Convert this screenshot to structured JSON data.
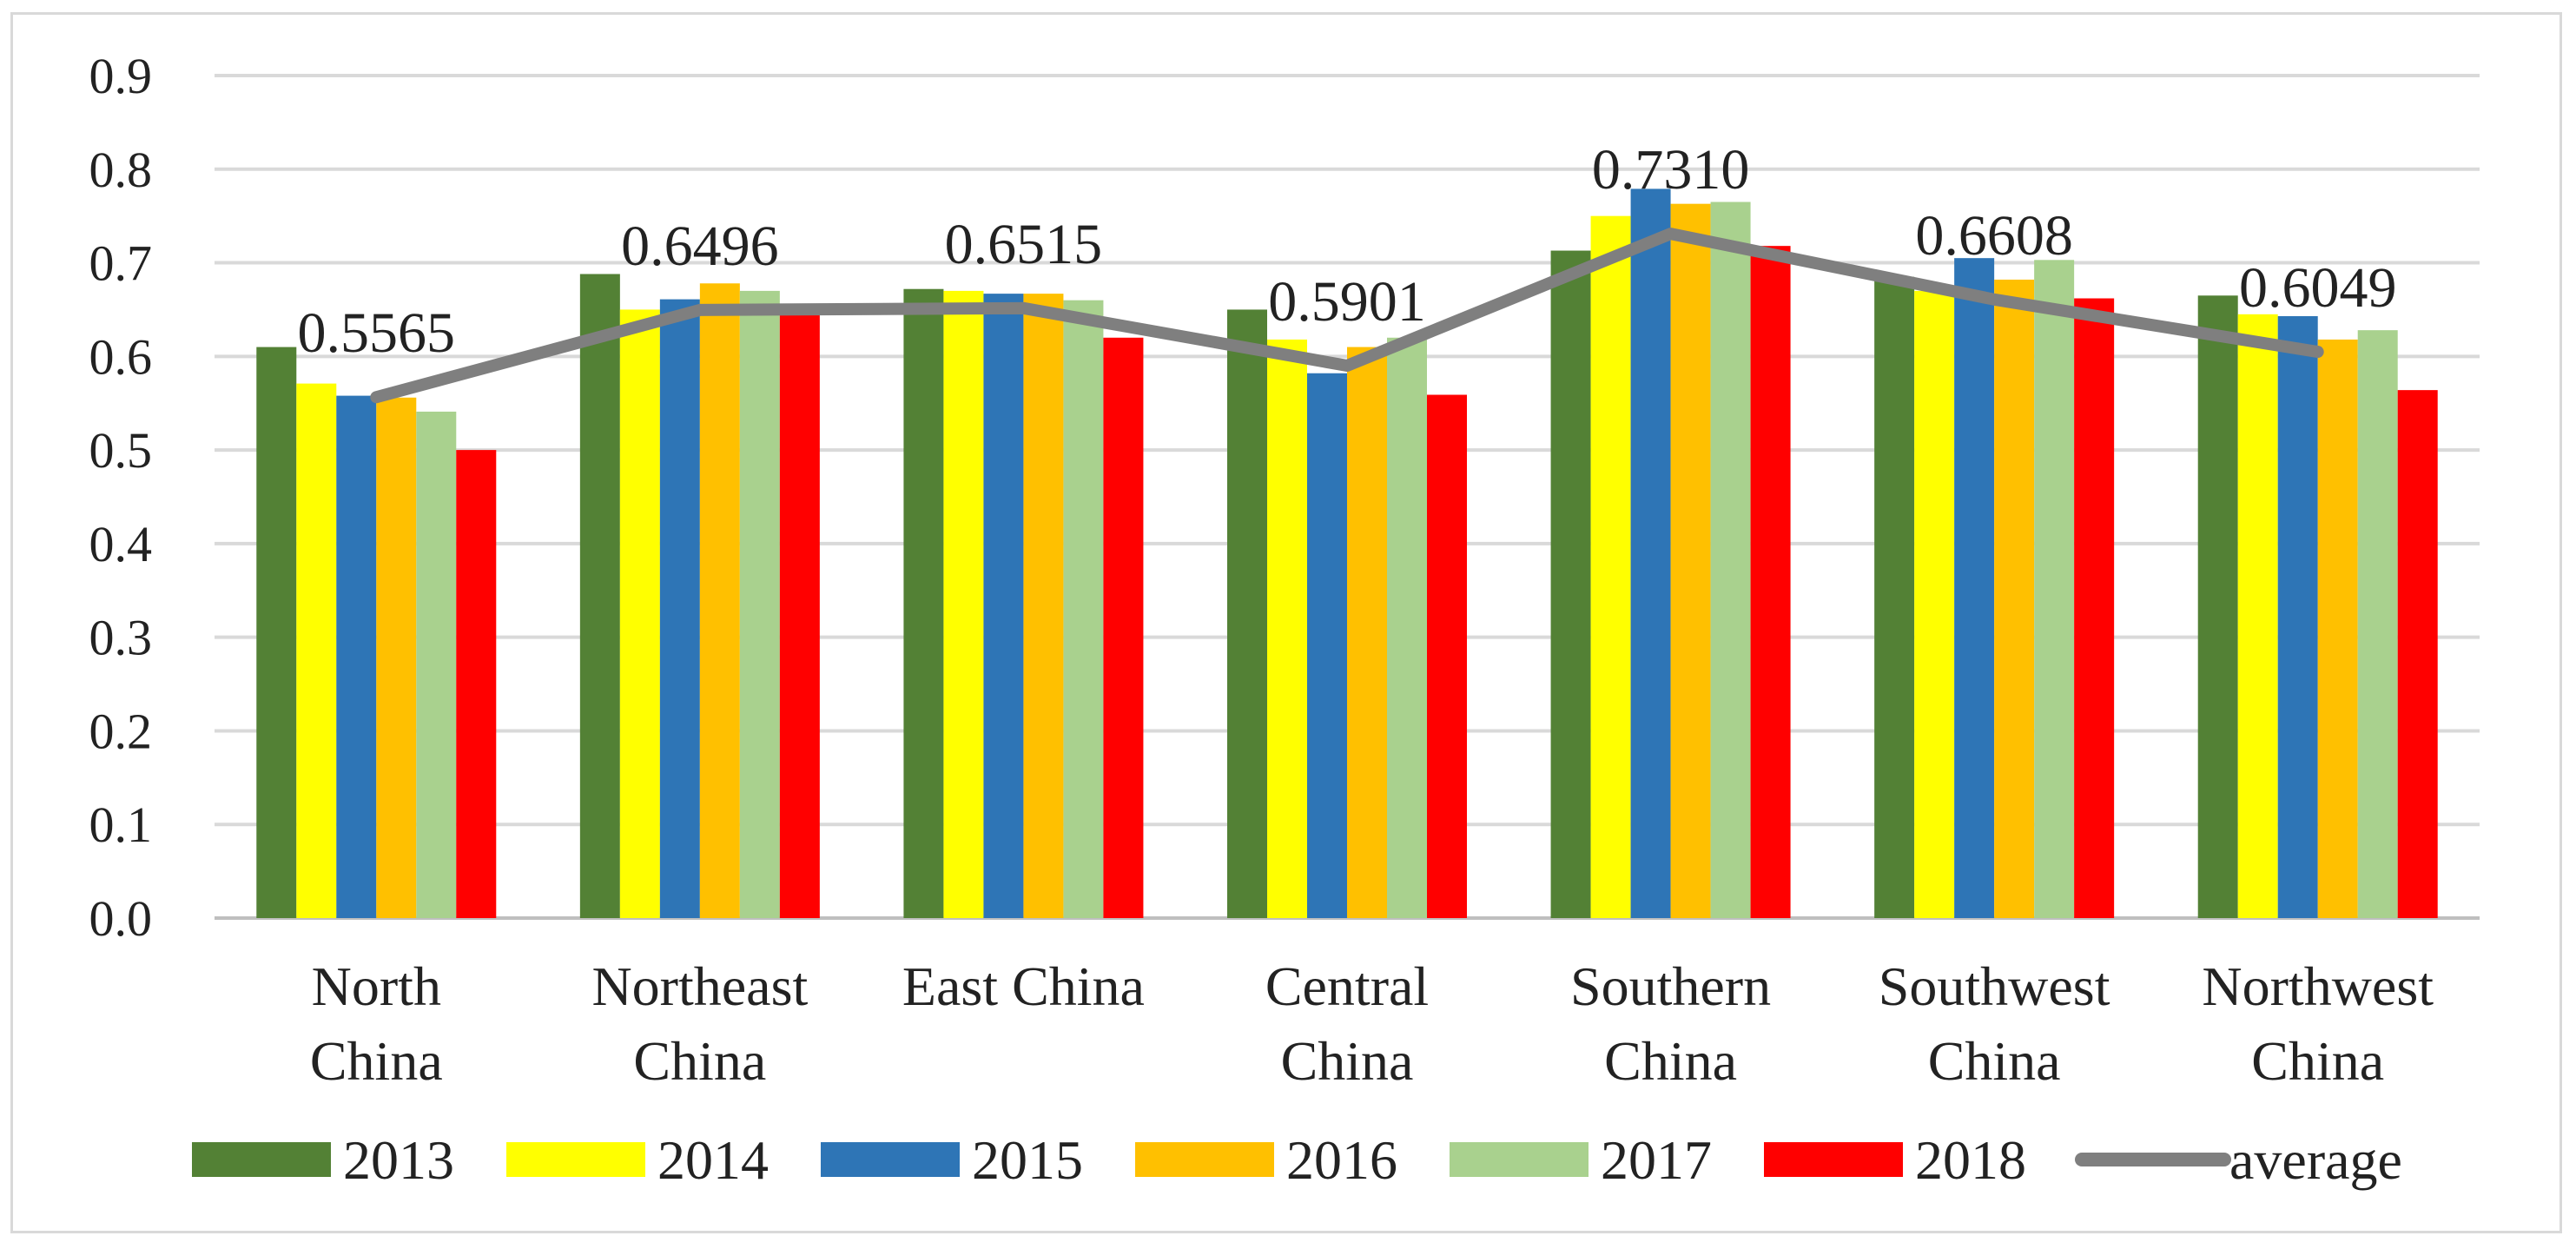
{
  "chart_data": {
    "type": "bar",
    "title": "",
    "xlabel": "",
    "ylabel": "",
    "ylim": [
      0,
      0.9
    ],
    "yticks": [
      "0.0",
      "0.1",
      "0.2",
      "0.3",
      "0.4",
      "0.5",
      "0.6",
      "0.7",
      "0.8",
      "0.9"
    ],
    "grid": true,
    "legend_position": "bottom",
    "categories": [
      [
        "North",
        "China"
      ],
      [
        "Northeast",
        "China"
      ],
      [
        "East China"
      ],
      [
        "Central",
        "China"
      ],
      [
        "Southern",
        "China"
      ],
      [
        "Southwest",
        "China"
      ],
      [
        "Northwest",
        "China"
      ]
    ],
    "series": [
      {
        "name": "2013",
        "color": "#538135",
        "values": [
          0.61,
          0.688,
          0.672,
          0.65,
          0.713,
          0.685,
          0.665
        ]
      },
      {
        "name": "2014",
        "color": "#ffff00",
        "values": [
          0.571,
          0.65,
          0.67,
          0.618,
          0.75,
          0.67,
          0.645
        ]
      },
      {
        "name": "2015",
        "color": "#2e75b6",
        "values": [
          0.558,
          0.661,
          0.667,
          0.582,
          0.779,
          0.705,
          0.643
        ]
      },
      {
        "name": "2016",
        "color": "#ffc000",
        "values": [
          0.556,
          0.678,
          0.667,
          0.61,
          0.763,
          0.682,
          0.618
        ]
      },
      {
        "name": "2017",
        "color": "#a9d18e",
        "values": [
          0.541,
          0.67,
          0.66,
          0.62,
          0.765,
          0.703,
          0.628
        ]
      },
      {
        "name": "2018",
        "color": "#ff0000",
        "values": [
          0.5,
          0.648,
          0.62,
          0.559,
          0.718,
          0.662,
          0.564
        ]
      }
    ],
    "average": {
      "name": "average",
      "color": "#7f7f7f",
      "type": "line",
      "values": [
        0.5565,
        0.6496,
        0.6515,
        0.5901,
        0.731,
        0.6608,
        0.6049
      ],
      "labels": [
        "0.5565",
        "0.6496",
        "0.6515",
        "0.5901",
        "0.7310",
        "0.6608",
        "0.6049"
      ]
    }
  }
}
